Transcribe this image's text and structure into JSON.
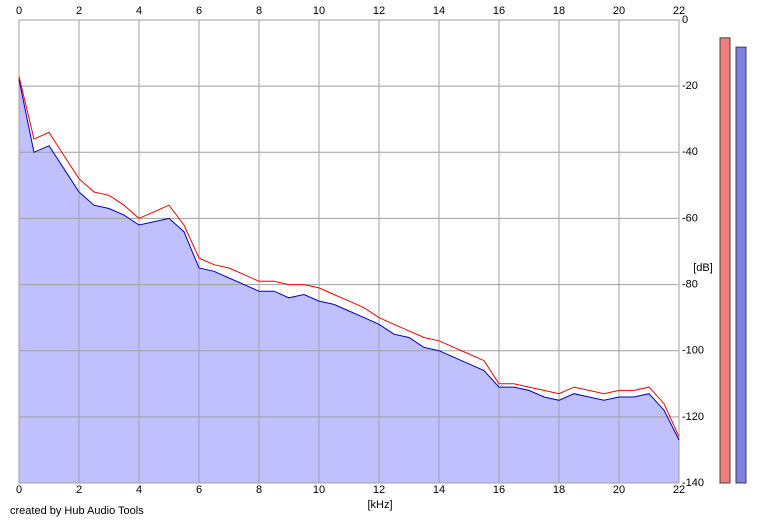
{
  "chart_data": {
    "type": "spectrum",
    "x_label": "[kHz]",
    "y_label": "[dB]",
    "footer": "created by Hub Audio Tools",
    "xlim": [
      0,
      22
    ],
    "xticks": [
      0,
      2,
      4,
      6,
      8,
      10,
      12,
      14,
      16,
      18,
      20,
      22
    ],
    "ylim": [
      -140,
      0
    ],
    "yticks": [
      0,
      -20,
      -40,
      -60,
      -80,
      -100,
      -120,
      -140
    ],
    "grid": true,
    "x": [
      0,
      0.5,
      1,
      1.5,
      2,
      2.5,
      3,
      3.5,
      4,
      4.5,
      5,
      5.5,
      6,
      6.5,
      7,
      7.5,
      8,
      8.5,
      9,
      9.5,
      10,
      10.5,
      11,
      11.5,
      12,
      12.5,
      13,
      13.5,
      14,
      14.5,
      15,
      15.5,
      16,
      16.5,
      17,
      17.5,
      18,
      18.5,
      19,
      19.5,
      20,
      20.5,
      21,
      21.5,
      22
    ],
    "series": [
      {
        "color": "#ff0000",
        "values": [
          -17,
          -36,
          -34,
          -41,
          -48,
          -52,
          -53,
          -56,
          -60,
          -58,
          -56,
          -62,
          -72,
          -74,
          -75,
          -77,
          -79,
          -79,
          -80,
          -80,
          -81,
          -83,
          -85,
          -87,
          -90,
          -92,
          -94,
          -96,
          -97,
          -99,
          -101,
          -103,
          -110,
          -110,
          -111,
          -112,
          -113,
          -111,
          -112,
          -113,
          -112,
          -112,
          -111,
          -116,
          -126
        ]
      },
      {
        "color": "#0000c0",
        "fill": "#c0c0ff",
        "values": [
          -18,
          -40,
          -38,
          -45,
          -52,
          -56,
          -57,
          -59,
          -62,
          -61,
          -60,
          -64,
          -75,
          -76,
          -78,
          -80,
          -82,
          -82,
          -84,
          -83,
          -85,
          -86,
          -88,
          -90,
          -92,
          -95,
          -96,
          -99,
          -100,
          -102,
          -104,
          -106,
          -111,
          -111,
          -112,
          -114,
          -115,
          -113,
          -114,
          -115,
          -114,
          -114,
          -113,
          -118,
          -127
        ]
      }
    ],
    "levels": [
      {
        "color": "#f08080",
        "value": -5.4
      },
      {
        "color": "#8080e0",
        "value": -8.2
      }
    ]
  }
}
